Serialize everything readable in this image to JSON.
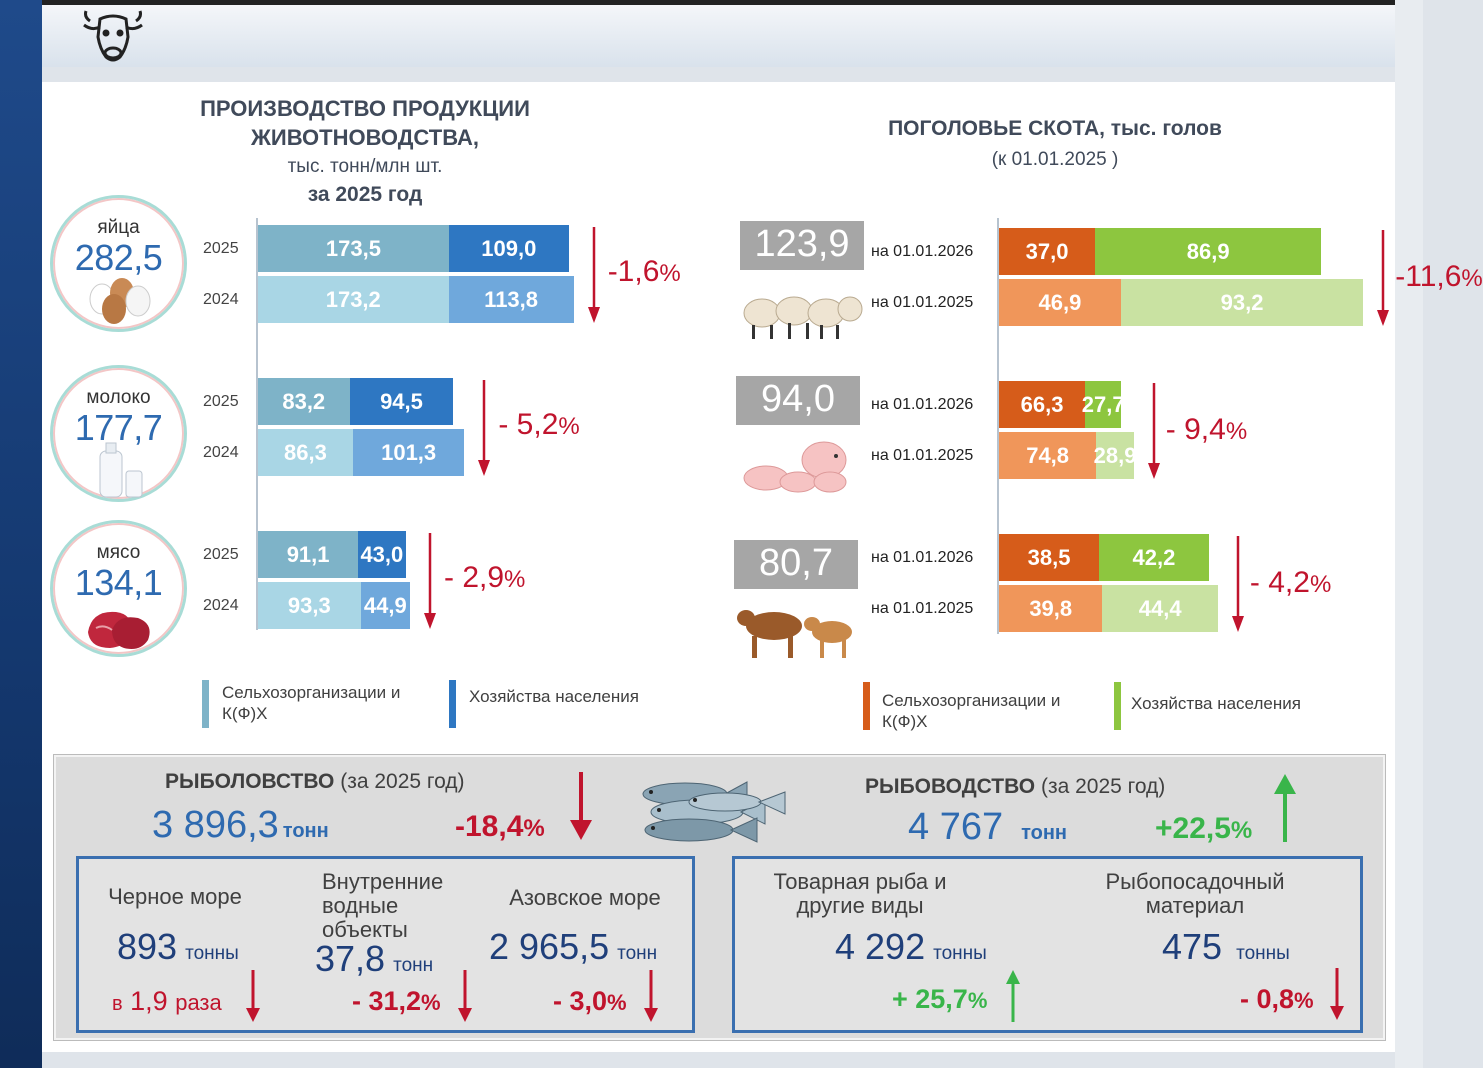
{
  "colors": {
    "org_blue": "#7eb3c8",
    "house_blue": "#2e77c2",
    "org_blue_light": "#a9d6e5",
    "house_blue_light": "#6fa8dc",
    "org_orange": "#d65c1a",
    "house_green": "#8dc63f",
    "org_orange_light": "#f0965a",
    "house_green_light": "#c9e2a2",
    "down": "#c0142d",
    "up": "#39b54a"
  },
  "header": {
    "icon": "cow-head-icon"
  },
  "production": {
    "title1": "ПРОИЗВОДСТВО ПРОДУКЦИИ",
    "title2": "ЖИВОТНОВОДСТВА,",
    "unit": "тыс. тонн/млн шт.",
    "period": "за 2025 год",
    "items": [
      {
        "label": "яйца",
        "total": "282,5",
        "icon": "eggs-icon",
        "change": "-1,6",
        "pct": "%",
        "rows": [
          {
            "year": "2025",
            "org": 173.5,
            "org_t": "173,5",
            "house": 109.0,
            "house_t": "109,0"
          },
          {
            "year": "2024",
            "org": 173.2,
            "org_t": "173,2",
            "house": 113.8,
            "house_t": "113,8"
          }
        ]
      },
      {
        "label": "молоко",
        "total": "177,7",
        "icon": "milk-icon",
        "change": "- 5,2",
        "pct": "%",
        "rows": [
          {
            "year": "2025",
            "org": 83.2,
            "org_t": "83,2",
            "house": 94.5,
            "house_t": "94,5"
          },
          {
            "year": "2024",
            "org": 86.3,
            "org_t": "86,3",
            "house": 101.3,
            "house_t": "101,3"
          }
        ]
      },
      {
        "label": "мясо",
        "total": "134,1",
        "icon": "meat-icon",
        "change": "- 2,9",
        "pct": "%",
        "rows": [
          {
            "year": "2025",
            "org": 91.1,
            "org_t": "91,1",
            "house": 43.0,
            "house_t": "43,0"
          },
          {
            "year": "2024",
            "org": 93.3,
            "org_t": "93,3",
            "house": 44.9,
            "house_t": "44,9"
          }
        ]
      }
    ],
    "legend": {
      "org": "Сельхозорганизации и К(Ф)Х",
      "house": "Хозяйства населения"
    }
  },
  "livestock": {
    "title": "ПОГОЛОВЬЕ СКОТА, тыс. голов",
    "date": "(к 01.01.2025 )",
    "items": [
      {
        "total": "123,9",
        "icon": "sheep-icon",
        "change": "-11,6",
        "pct": "%",
        "rows": [
          {
            "date": "на 01.01.2026",
            "org": 37.0,
            "org_t": "37,0",
            "house": 86.9,
            "house_t": "86,9"
          },
          {
            "date": "на 01.01.2025",
            "org": 46.9,
            "org_t": "46,9",
            "house": 93.2,
            "house_t": "93,2"
          }
        ]
      },
      {
        "total": "94,0",
        "icon": "pigs-icon",
        "change": "- 9,4",
        "pct": "%",
        "rows": [
          {
            "date": "на 01.01.2026",
            "org": 66.3,
            "org_t": "66,3",
            "house": 27.7,
            "house_t": "27,7"
          },
          {
            "date": "на 01.01.2025",
            "org": 74.8,
            "org_t": "74,8",
            "house": 28.9,
            "house_t": "28,9"
          }
        ]
      },
      {
        "total": "80,7",
        "icon": "cattle-icon",
        "change": "- 4,2",
        "pct": "%",
        "rows": [
          {
            "date": "на 01.01.2026",
            "org": 38.5,
            "org_t": "38,5",
            "house": 42.2,
            "house_t": "42,2"
          },
          {
            "date": "на 01.01.2025",
            "org": 39.8,
            "org_t": "39,8",
            "house": 44.4,
            "house_t": "44,4"
          }
        ]
      }
    ],
    "legend": {
      "org": "Сельхозорганизации и К(Ф)Х",
      "house": "Хозяйства населения"
    }
  },
  "fishing": {
    "title": "РЫБОЛОВСТВО",
    "period": "(за 2025 год)",
    "value": "3 896,3",
    "unit": "тонн",
    "change": "-18,4",
    "pct": "%",
    "cols": [
      {
        "label": "Черное море",
        "value": "893",
        "unit": "тонны",
        "pre": "в",
        "change": "1,9",
        "post": "раза"
      },
      {
        "label": "Внутренние водные объекты",
        "value": "37,8",
        "unit": "тонн",
        "change": "- 31,2",
        "pct": "%"
      },
      {
        "label": "Азовское море",
        "value": "2 965,5",
        "unit": "тонн",
        "change": "- 3,0",
        "pct": "%"
      }
    ]
  },
  "fish_farming": {
    "title": "РЫБОВОДСТВО",
    "period": "(за 2025 год)",
    "value": "4 767",
    "unit": "тонн",
    "change": "+22,5",
    "pct": "%",
    "cols": [
      {
        "label": "Товарная рыба и другие виды",
        "value": "4 292",
        "unit": "тонны",
        "change": "+ 25,7",
        "pct": "%"
      },
      {
        "label": "Рыбопосадочный материал",
        "value": "475",
        "unit": "тонны",
        "change": "- 0,8",
        "pct": "%"
      }
    ]
  },
  "chart_data": [
    {
      "type": "bar",
      "title": "ПРОИЗВОДСТВО ПРОДУКЦИИ ЖИВОТНОВОДСТВА, тыс. тонн/млн шт. за 2025 год",
      "categories": [
        "яйца 2025",
        "яйца 2024",
        "молоко 2025",
        "молоко 2024",
        "мясо 2025",
        "мясо 2024"
      ],
      "series": [
        {
          "name": "Сельхозорганизации и К(Ф)Х",
          "values": [
            173.5,
            173.2,
            83.2,
            86.3,
            91.1,
            93.3
          ]
        },
        {
          "name": "Хозяйства населения",
          "values": [
            109.0,
            113.8,
            94.5,
            101.3,
            43.0,
            44.9
          ]
        }
      ]
    },
    {
      "type": "bar",
      "title": "ПОГОЛОВЬЕ СКОТА, тыс. голов",
      "categories": [
        "123,9 на 01.01.2026",
        "123,9 на 01.01.2025",
        "94,0 на 01.01.2026",
        "94,0 на 01.01.2025",
        "80,7 на 01.01.2026",
        "80,7 на 01.01.2025"
      ],
      "series": [
        {
          "name": "Сельхозорганизации и К(Ф)Х",
          "values": [
            37.0,
            46.9,
            66.3,
            74.8,
            38.5,
            39.8
          ]
        },
        {
          "name": "Хозяйства населения",
          "values": [
            86.9,
            93.2,
            27.7,
            28.9,
            42.2,
            44.4
          ]
        }
      ]
    }
  ]
}
